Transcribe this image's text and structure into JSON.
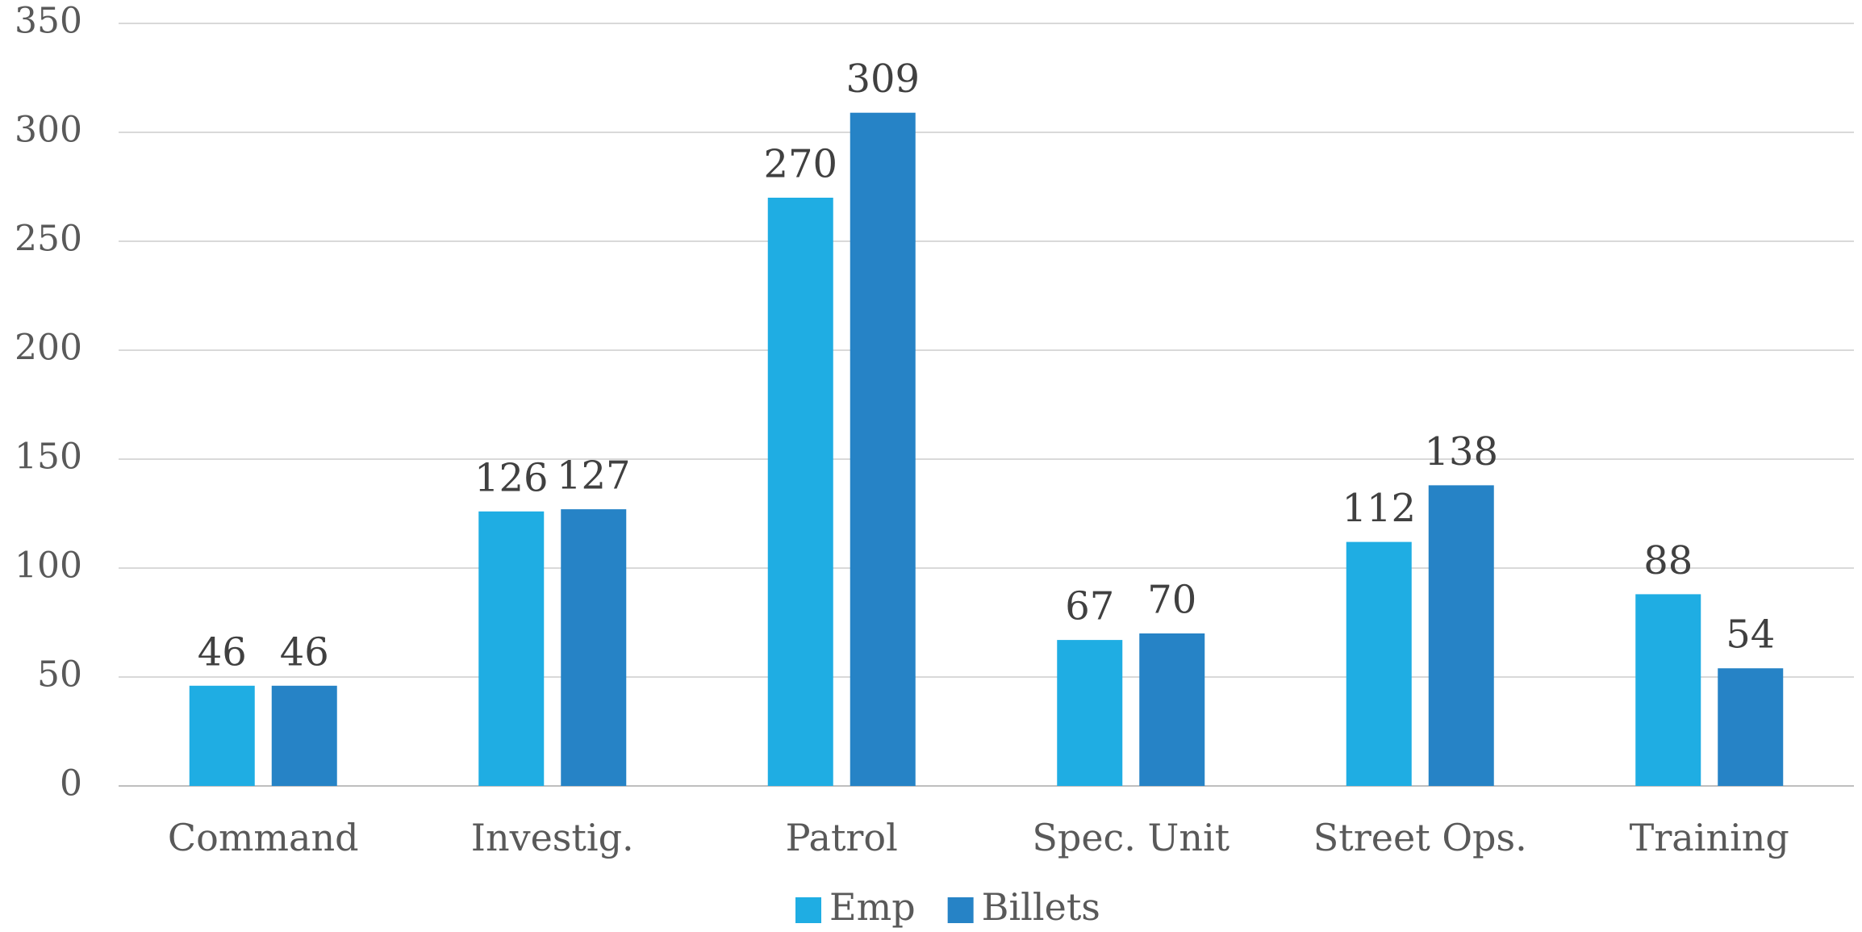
{
  "chart_data": {
    "type": "bar",
    "categories": [
      "Command",
      "Investig.",
      "Patrol",
      "Spec. Unit",
      "Street Ops.",
      "Training"
    ],
    "series": [
      {
        "name": "Emp",
        "color": "#1fade3",
        "values": [
          46,
          126,
          270,
          67,
          112,
          88
        ]
      },
      {
        "name": "Billets",
        "color": "#2683c6",
        "values": [
          46,
          127,
          309,
          70,
          138,
          54
        ]
      }
    ],
    "ylim": [
      0,
      350
    ],
    "yticks": [
      0,
      50,
      100,
      150,
      200,
      250,
      300,
      350
    ],
    "grid": true,
    "legend": "bottom"
  }
}
